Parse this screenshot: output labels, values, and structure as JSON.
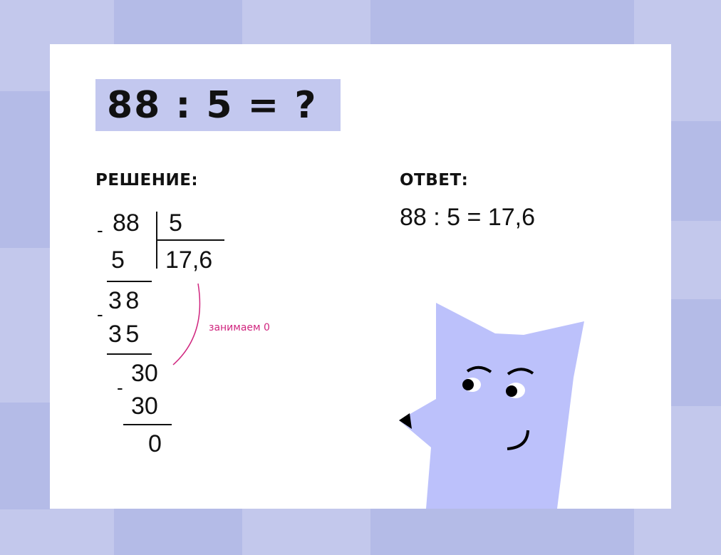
{
  "colors": {
    "background_light": "#c3c8ec",
    "background_dark": "#b4bbe7",
    "card": "#ffffff",
    "title_highlight": "#c3c8ef",
    "character": "#bcc1fb",
    "annotation": "#d0267f"
  },
  "title": "88 : 5 = ?",
  "solution": {
    "heading": "РЕШЕНИЕ:",
    "dividend": "88",
    "divisor": "5",
    "quotient": "17,6",
    "steps": [
      "5",
      "3 8",
      "3 5",
      "30",
      "30",
      "0"
    ],
    "minus": "-",
    "note": "занимаем 0"
  },
  "answer": {
    "heading": "ОТВЕТ:",
    "text": "88 : 5 = 17,6"
  },
  "character": "fox-character"
}
